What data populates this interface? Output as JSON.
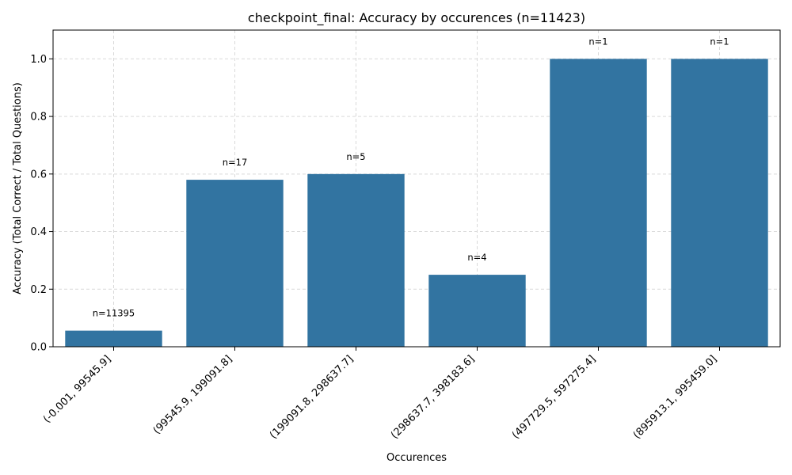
{
  "chart_data": {
    "type": "bar",
    "title": "checkpoint_final: Accuracy by occurences (n=11423)",
    "xlabel": "Occurences",
    "ylabel": "Accuracy (Total Correct / Total Questions)",
    "categories": [
      "(-0.001, 99545.9]",
      "(99545.9, 199091.8]",
      "(199091.8, 298637.7]",
      "(298637.7, 398183.6]",
      "(497729.5, 597275.4]",
      "(895913.1, 995459.0]"
    ],
    "values": [
      0.056,
      0.58,
      0.6,
      0.25,
      1.0,
      1.0
    ],
    "data_labels": [
      "n=11395",
      "n=17",
      "n=5",
      "n=4",
      "n=1",
      "n=1"
    ],
    "ylim": [
      0,
      1.1
    ],
    "yticks": [
      "0.0",
      "0.2",
      "0.4",
      "0.6",
      "0.8",
      "1.0"
    ],
    "grid": true,
    "bar_color": "#3274a1",
    "grid_color": "#d9d9d9"
  }
}
